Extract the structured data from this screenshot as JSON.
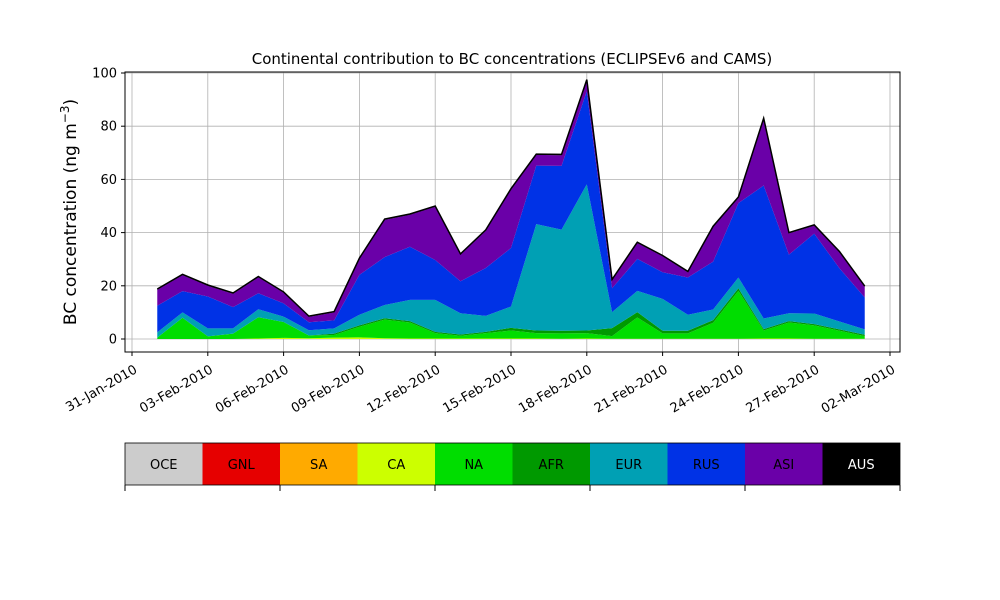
{
  "chart_data": {
    "type": "area",
    "stacked": true,
    "title": "Continental contribution to BC concentrations (ECLIPSEv6 and CAMS)",
    "ylabel_main": "BC concentration (ng m",
    "ylabel_sup": "−3",
    "ylabel_close": ")",
    "xlabel": "",
    "ylim": [
      0,
      100
    ],
    "yticks": [
      0,
      20,
      40,
      60,
      80,
      100
    ],
    "xlim": [
      "2010-01-30",
      "2010-03-02"
    ],
    "xticks": [
      "31-Jan-2010",
      "03-Feb-2010",
      "06-Feb-2010",
      "09-Feb-2010",
      "12-Feb-2010",
      "15-Feb-2010",
      "18-Feb-2010",
      "21-Feb-2010",
      "24-Feb-2010",
      "27-Feb-2010",
      "02-Mar-2010"
    ],
    "grid": true,
    "x_dates": [
      "2010-02-01",
      "2010-02-02",
      "2010-02-03",
      "2010-02-04",
      "2010-02-05",
      "2010-02-06",
      "2010-02-07",
      "2010-02-08",
      "2010-02-09",
      "2010-02-10",
      "2010-02-11",
      "2010-02-12",
      "2010-02-13",
      "2010-02-14",
      "2010-02-15",
      "2010-02-16",
      "2010-02-17",
      "2010-02-18",
      "2010-02-19",
      "2010-02-20",
      "2010-02-21",
      "2010-02-22",
      "2010-02-23",
      "2010-02-24",
      "2010-02-25",
      "2010-02-26",
      "2010-02-27",
      "2010-02-28",
      "2010-03-01"
    ],
    "series": [
      {
        "name": "OCE",
        "color": "#cccccc",
        "values": [
          0,
          0,
          0,
          0,
          0,
          0,
          0,
          0,
          0,
          0,
          0,
          0,
          0,
          0,
          0,
          0,
          0,
          0,
          0,
          0,
          0,
          0,
          0,
          0,
          0,
          0,
          0,
          0,
          0
        ]
      },
      {
        "name": "GNL",
        "color": "#e60000",
        "values": [
          0,
          0,
          0,
          0,
          0,
          0,
          0,
          0,
          0,
          0,
          0,
          0,
          0,
          0,
          0,
          0,
          0,
          0,
          0,
          0,
          0,
          0,
          0,
          0,
          0,
          0,
          0,
          0,
          0
        ]
      },
      {
        "name": "SA",
        "color": "#ffaa00",
        "values": [
          0,
          0,
          0,
          0,
          0,
          0,
          0,
          0,
          0,
          0,
          0,
          0,
          0,
          0,
          0,
          0,
          0,
          0,
          0,
          0,
          0,
          0,
          0,
          0,
          0,
          0,
          0,
          0,
          0
        ]
      },
      {
        "name": "CA",
        "color": "#ccff00",
        "values": [
          0,
          0,
          0,
          0,
          0.2,
          0.4,
          0.3,
          0.5,
          0.6,
          0.3,
          0.2,
          0.2,
          0.2,
          0.2,
          0.2,
          0.2,
          0.1,
          0.2,
          0.1,
          0.1,
          0.1,
          0.1,
          0.1,
          0.1,
          0.2,
          0.2,
          0.1,
          0.1,
          0.1
        ]
      },
      {
        "name": "NA",
        "color": "#00dd00",
        "values": [
          0.5,
          8,
          1,
          2,
          8,
          6,
          1,
          1,
          4,
          7,
          6,
          2,
          1,
          2,
          3,
          2,
          2,
          2,
          1,
          8,
          2,
          2,
          6,
          18,
          3,
          6,
          5,
          3,
          1
        ]
      },
      {
        "name": "AFR",
        "color": "#009900",
        "values": [
          0,
          0,
          0,
          0,
          0,
          0,
          0,
          0.5,
          0.5,
          0.5,
          0.5,
          0.5,
          0.5,
          0.5,
          1,
          1,
          1,
          1,
          3,
          2,
          1,
          1,
          1,
          1,
          0.5,
          0.5,
          0.5,
          0.5,
          0.5
        ]
      },
      {
        "name": "EUR",
        "color": "#00a0b4",
        "values": [
          2,
          2,
          3,
          2,
          3,
          2,
          2,
          2,
          4,
          5,
          8,
          12,
          8,
          6,
          8,
          40,
          38,
          55,
          6,
          8,
          12,
          6,
          4,
          4,
          4,
          3,
          4,
          3,
          2
        ]
      },
      {
        "name": "RUS",
        "color": "#0032e6",
        "values": [
          10,
          8,
          12,
          8,
          6,
          5,
          3,
          3,
          15,
          18,
          20,
          15,
          12,
          18,
          22,
          22,
          24,
          35,
          9,
          12,
          10,
          14,
          18,
          28,
          50,
          22,
          30,
          20,
          12
        ]
      },
      {
        "name": "ASI",
        "color": "#6a00a8",
        "values": [
          6,
          6,
          4,
          5,
          6,
          4,
          2,
          3,
          6,
          14,
          12,
          20,
          10,
          14,
          22,
          4,
          4,
          4,
          3,
          6,
          6,
          2,
          13,
          2,
          25,
          8,
          3,
          6,
          4
        ]
      },
      {
        "name": "AUS",
        "color": "#000000",
        "values": [
          0.3,
          0.3,
          0.3,
          0.3,
          0.3,
          0.3,
          0.3,
          0.3,
          0.3,
          0.3,
          0.3,
          0.3,
          0.3,
          0.3,
          0.3,
          0.3,
          0.3,
          0.3,
          0.3,
          0.3,
          0.3,
          0.3,
          0.3,
          0.3,
          0.3,
          0.3,
          0.3,
          0.3,
          0.3
        ]
      }
    ]
  },
  "legend_ticks": [
    "",
    "",
    "",
    "",
    ""
  ]
}
